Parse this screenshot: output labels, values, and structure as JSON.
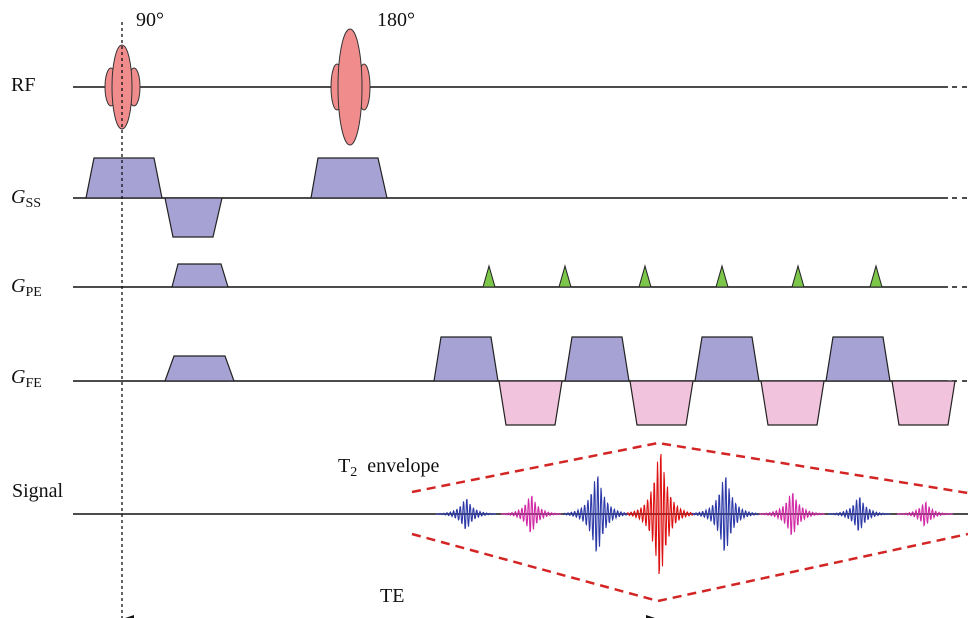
{
  "rows": {
    "rf": {
      "label": "RF"
    },
    "gss": {
      "main": "G",
      "sub": "SS"
    },
    "gpe": {
      "main": "G",
      "sub": "PE"
    },
    "gfe": {
      "main": "G",
      "sub": "FE"
    },
    "signal": {
      "label": "Signal"
    }
  },
  "pulses": {
    "excitation": {
      "angle": "90°"
    },
    "refocus": {
      "angle": "180°"
    }
  },
  "envelope": {
    "main": "T",
    "sub": "2",
    "rest": "envelope"
  },
  "te": {
    "label": "TE"
  },
  "colors": {
    "rf_pulse": "#f08c8c",
    "gradient": "#a6a2d4",
    "gradient_negative": "#f2c3dc",
    "blip": "#7cc64a",
    "envelope": "#d42525",
    "echo_blue": "#2e3aa8",
    "echo_magenta": "#d12aa5",
    "echo_red": "#dd1111"
  },
  "echo_sequence": [
    "blue",
    "magenta",
    "blue",
    "red",
    "blue",
    "magenta",
    "blue",
    "magenta"
  ]
}
